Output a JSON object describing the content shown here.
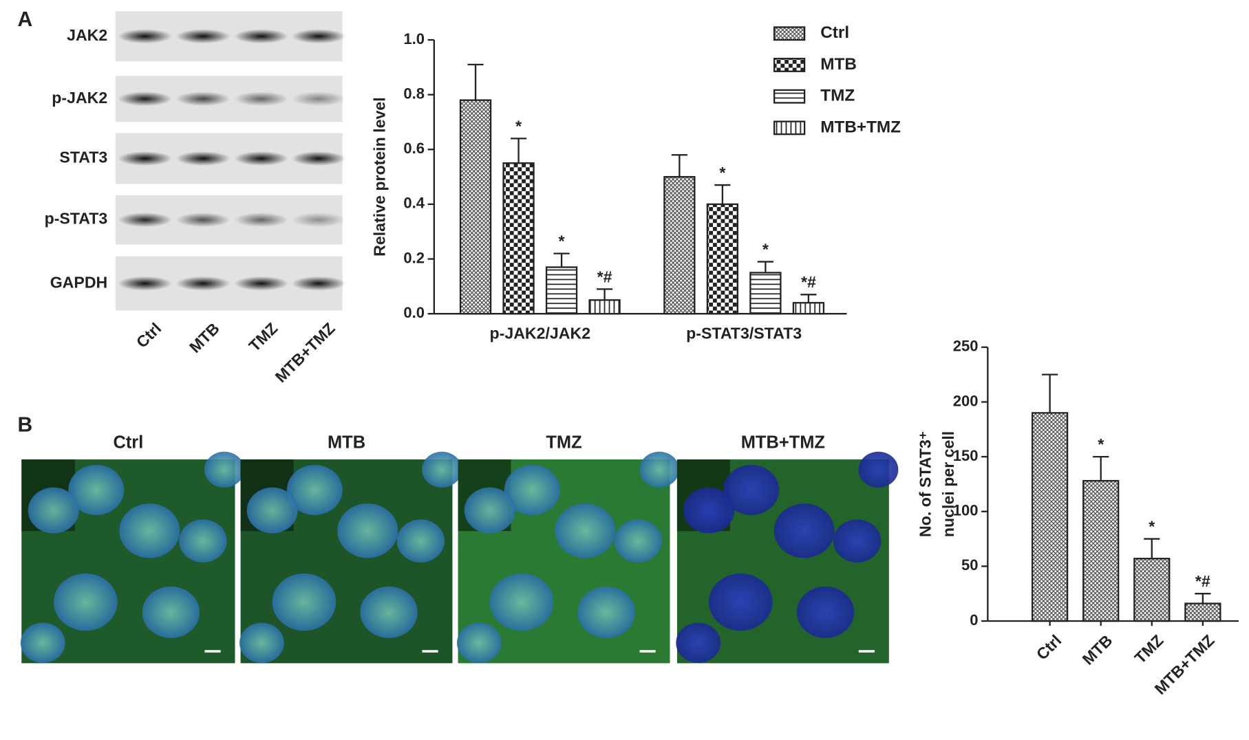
{
  "panels": {
    "a": "A",
    "b": "B"
  },
  "blot": {
    "proteins": [
      "JAK2",
      "p-JAK2",
      "STAT3",
      "p-STAT3",
      "GAPDH"
    ],
    "lanes": [
      "Ctrl",
      "MTB",
      "TMZ",
      "MTB+TMZ"
    ]
  },
  "images": {
    "titles": [
      "Ctrl",
      "MTB",
      "TMZ",
      "MTB+TMZ"
    ]
  },
  "chart_data": [
    {
      "type": "bar",
      "y_label": "Relative protein level",
      "categories": [
        "p-JAK2/JAK2",
        "p-STAT3/STAT3"
      ],
      "series": [
        {
          "name": "Ctrl",
          "color": "#222222",
          "pattern": "crosshatch",
          "values": [
            0.78,
            0.5
          ],
          "errors": [
            0.13,
            0.08
          ]
        },
        {
          "name": "MTB",
          "color": "#222222",
          "pattern": "checker",
          "values": [
            0.55,
            0.4
          ],
          "errors": [
            0.09,
            0.07
          ],
          "annotations": [
            "*",
            "*"
          ]
        },
        {
          "name": "TMZ",
          "color": "#222222",
          "pattern": "hlines",
          "values": [
            0.17,
            0.15
          ],
          "errors": [
            0.05,
            0.04
          ],
          "annotations": [
            "*",
            "*"
          ]
        },
        {
          "name": "MTB+TMZ",
          "color": "#222222",
          "pattern": "vlines",
          "values": [
            0.05,
            0.04
          ],
          "errors": [
            0.04,
            0.03
          ],
          "annotations": [
            "*#",
            "*#"
          ]
        }
      ],
      "ylim": [
        0,
        1
      ],
      "yticks": [
        {
          "value": 0,
          "label": "0.0"
        },
        0.2,
        0.4,
        0.6,
        0.8,
        {
          "value": 1,
          "label": "1.0"
        }
      ],
      "legend": "top-right"
    },
    {
      "type": "bar",
      "y_label": [
        "No. of STAT3⁺",
        "nuclei  per cell"
      ],
      "categories": [
        "Ctrl",
        "MTB",
        "TMZ",
        "MTB+TMZ"
      ],
      "values": [
        190,
        128,
        57,
        16
      ],
      "errors": [
        35,
        22,
        18,
        9
      ],
      "annotations": [
        null,
        "*",
        "*",
        "*#"
      ],
      "color": "#222222",
      "pattern": "crosshatch",
      "ylim": [
        0,
        250
      ],
      "yticks": [
        0,
        50,
        100,
        150,
        200,
        250
      ]
    }
  ]
}
